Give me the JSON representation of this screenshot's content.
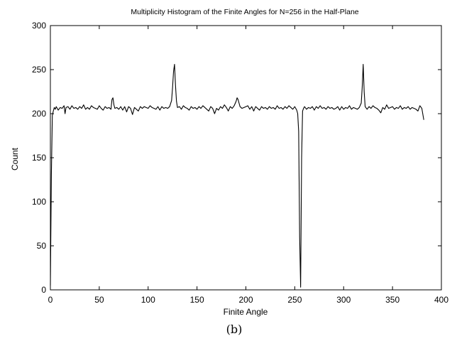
{
  "figure": {
    "caption": "(b)"
  },
  "chart_data": {
    "type": "line",
    "title": "Multiplicity Histogram of the Finite Angles for N=256 in the Half-Plane",
    "xlabel": "Finite Angle",
    "ylabel": "Count",
    "xlim": [
      0,
      400
    ],
    "ylim": [
      0,
      300
    ],
    "xticks": [
      "0",
      "50",
      "100",
      "150",
      "200",
      "250",
      "300",
      "350",
      "400"
    ],
    "yticks": [
      "0",
      "50",
      "100",
      "150",
      "200",
      "250",
      "300"
    ],
    "grid": false,
    "legend": "none",
    "line_color": "#000000",
    "series": [
      {
        "x": [
          0,
          1,
          2,
          3,
          4,
          5,
          6,
          8,
          10,
          12,
          14,
          15,
          16,
          18,
          20,
          22,
          24,
          26,
          28,
          30,
          32,
          34,
          36,
          38,
          40,
          42,
          44,
          46,
          48,
          50,
          52,
          54,
          56,
          58,
          60,
          62,
          63,
          64,
          65,
          66,
          68,
          70,
          72,
          74,
          76,
          78,
          80,
          82,
          84,
          86,
          88,
          90,
          92,
          94,
          96,
          98,
          100,
          102,
          104,
          106,
          108,
          110,
          112,
          114,
          116,
          118,
          120,
          122,
          124,
          125,
          126,
          127,
          128,
          129,
          130,
          132,
          134,
          136,
          138,
          140,
          142,
          144,
          146,
          148,
          150,
          152,
          154,
          156,
          158,
          160,
          162,
          164,
          166,
          168,
          170,
          172,
          174,
          176,
          178,
          180,
          182,
          184,
          186,
          188,
          190,
          191,
          192,
          193,
          194,
          196,
          198,
          200,
          202,
          204,
          206,
          208,
          210,
          212,
          214,
          216,
          218,
          220,
          222,
          224,
          226,
          228,
          230,
          232,
          234,
          236,
          238,
          240,
          242,
          244,
          246,
          248,
          250,
          252,
          253,
          254,
          255,
          256,
          257,
          258,
          259,
          260,
          262,
          264,
          266,
          268,
          270,
          272,
          274,
          276,
          278,
          280,
          282,
          284,
          286,
          288,
          290,
          292,
          294,
          296,
          298,
          300,
          302,
          304,
          306,
          308,
          310,
          312,
          314,
          316,
          318,
          319,
          320,
          321,
          322,
          324,
          326,
          328,
          330,
          332,
          334,
          336,
          338,
          340,
          342,
          344,
          346,
          348,
          350,
          352,
          354,
          356,
          358,
          360,
          362,
          364,
          366,
          368,
          370,
          372,
          374,
          376,
          378,
          380,
          382
        ],
        "y": [
          5,
          130,
          198,
          203,
          207,
          205,
          208,
          204,
          207,
          206,
          209,
          200,
          207,
          208,
          205,
          209,
          206,
          207,
          205,
          208,
          206,
          210,
          205,
          207,
          205,
          209,
          207,
          206,
          205,
          209,
          206,
          204,
          208,
          206,
          207,
          205,
          216,
          218,
          210,
          206,
          207,
          205,
          208,
          204,
          208,
          202,
          208,
          206,
          199,
          207,
          205,
          203,
          208,
          206,
          208,
          207,
          206,
          209,
          207,
          206,
          205,
          208,
          204,
          208,
          206,
          207,
          206,
          208,
          215,
          230,
          248,
          256,
          232,
          214,
          207,
          208,
          205,
          209,
          207,
          206,
          204,
          208,
          206,
          207,
          205,
          208,
          206,
          209,
          207,
          205,
          203,
          208,
          206,
          200,
          206,
          204,
          208,
          206,
          210,
          207,
          203,
          208,
          206,
          209,
          214,
          218,
          216,
          212,
          208,
          206,
          207,
          208,
          209,
          205,
          208,
          203,
          208,
          206,
          204,
          208,
          206,
          207,
          205,
          208,
          206,
          207,
          205,
          209,
          206,
          207,
          205,
          208,
          206,
          209,
          207,
          205,
          208,
          204,
          200,
          180,
          60,
          3,
          150,
          203,
          206,
          208,
          205,
          207,
          206,
          208,
          204,
          208,
          206,
          209,
          206,
          207,
          205,
          208,
          206,
          207,
          205,
          206,
          208,
          204,
          208,
          205,
          207,
          206,
          209,
          205,
          207,
          206,
          205,
          207,
          212,
          230,
          256,
          225,
          208,
          205,
          208,
          206,
          209,
          207,
          206,
          204,
          201,
          207,
          205,
          210,
          206,
          207,
          208,
          205,
          207,
          206,
          209,
          205,
          207,
          206,
          208,
          205,
          207,
          206,
          205,
          203,
          209,
          206,
          193
        ]
      }
    ]
  }
}
